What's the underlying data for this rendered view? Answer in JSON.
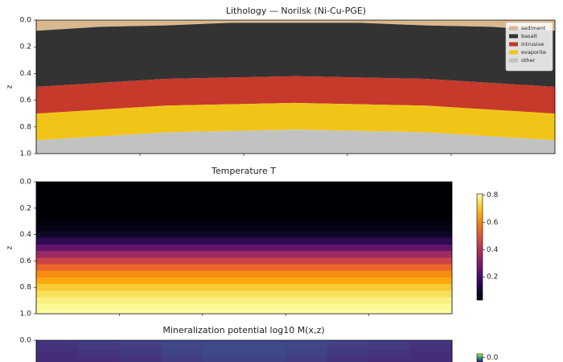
{
  "chart_data": [
    {
      "type": "area",
      "stacked": true,
      "title": "Lithology — Norilsk (Ni-Cu-PGE)",
      "ylabel": "z",
      "x": [
        0,
        0.125,
        0.25,
        0.375,
        0.5,
        0.625,
        0.75,
        0.875,
        1
      ],
      "xlim": [
        0,
        1
      ],
      "xticks": [
        0.2,
        0.4,
        0.6,
        0.8
      ],
      "ylim": [
        1,
        0
      ],
      "yticks": [
        {
          "value": 0,
          "label": "0.0"
        },
        0.2,
        0.4,
        0.6,
        0.8,
        {
          "value": 1,
          "label": "1.0"
        }
      ],
      "legend": "upper right",
      "series": [
        {
          "name": "sediment",
          "color": "#d9b88f",
          "values": [
            0.08,
            0.05,
            0.04,
            0.02,
            0.02,
            0.02,
            0.04,
            0.05,
            0.08
          ]
        },
        {
          "name": "basalt",
          "color": "#333333",
          "values": [
            0.42,
            0.42,
            0.4,
            0.41,
            0.4,
            0.41,
            0.4,
            0.42,
            0.42
          ]
        },
        {
          "name": "intrusive",
          "color": "#c6392b",
          "values": [
            0.2,
            0.2,
            0.2,
            0.2,
            0.2,
            0.2,
            0.2,
            0.2,
            0.2
          ]
        },
        {
          "name": "evaporite",
          "color": "#f1c517",
          "values": [
            0.2,
            0.2,
            0.2,
            0.2,
            0.2,
            0.2,
            0.2,
            0.2,
            0.2
          ]
        },
        {
          "name": "other",
          "color": "#c2c2c2",
          "values": [
            0.1,
            0.13,
            0.16,
            0.17,
            0.18,
            0.17,
            0.16,
            0.13,
            0.1
          ]
        }
      ]
    },
    {
      "type": "heatmap",
      "title": "Temperature T",
      "ylabel": "z",
      "colormap": "inferno",
      "xlim": [
        0,
        1
      ],
      "xticks": [
        0.2,
        0.4,
        0.6,
        0.8
      ],
      "ylim": [
        1,
        0
      ],
      "yticks": [
        {
          "value": 0,
          "label": "0.0"
        },
        0.2,
        0.4,
        0.6,
        0.8,
        {
          "value": 1,
          "label": "1.0"
        }
      ],
      "z": [
        0,
        0.05,
        0.1,
        0.15,
        0.2,
        0.25,
        0.3,
        0.35,
        0.4,
        0.45,
        0.5,
        0.55,
        0.6,
        0.65,
        0.7,
        0.75,
        0.8,
        0.85,
        0.9,
        0.95,
        1
      ],
      "values": [
        0.03,
        0.03,
        0.03,
        0.03,
        0.03,
        0.03,
        0.04,
        0.05,
        0.08,
        0.15,
        0.25,
        0.36,
        0.46,
        0.54,
        0.61,
        0.66,
        0.71,
        0.75,
        0.78,
        0.8,
        0.81
      ],
      "clim": [
        0.03,
        0.81
      ],
      "cticks": [
        0.2,
        0.4,
        0.6,
        0.8
      ]
    },
    {
      "type": "heatmap",
      "title": "Mineralization potential  log10 M(x,z)",
      "colormap": "viridis",
      "xlim": [
        0,
        1
      ],
      "ylim": [
        1,
        0
      ],
      "yticks": [
        {
          "value": 0,
          "label": "0.0"
        }
      ],
      "x": [
        0.05,
        0.15,
        0.25,
        0.35,
        0.45,
        0.55,
        0.65,
        0.75,
        0.85,
        0.95
      ],
      "z": [
        0,
        0.05,
        0.1,
        0.15
      ],
      "values": [
        [
          -2.5,
          -2.45,
          -2.4,
          -2.35,
          -2.3,
          -2.3,
          -2.35,
          -2.4,
          -2.45,
          -2.5
        ],
        [
          -2.55,
          -2.5,
          -2.45,
          -2.35,
          -2.3,
          -2.3,
          -2.35,
          -2.45,
          -2.5,
          -2.55
        ],
        [
          -2.6,
          -2.55,
          -2.5,
          -2.4,
          -2.35,
          -2.35,
          -2.4,
          -2.5,
          -2.55,
          -2.6
        ],
        [
          -2.6,
          -2.6,
          -2.55,
          -2.45,
          -2.4,
          -2.4,
          -2.45,
          -2.55,
          -2.6,
          -2.6
        ]
      ],
      "clim": [
        -3,
        0.1
      ],
      "cticks": [
        {
          "value": 0,
          "label": "0.0"
        }
      ]
    }
  ]
}
